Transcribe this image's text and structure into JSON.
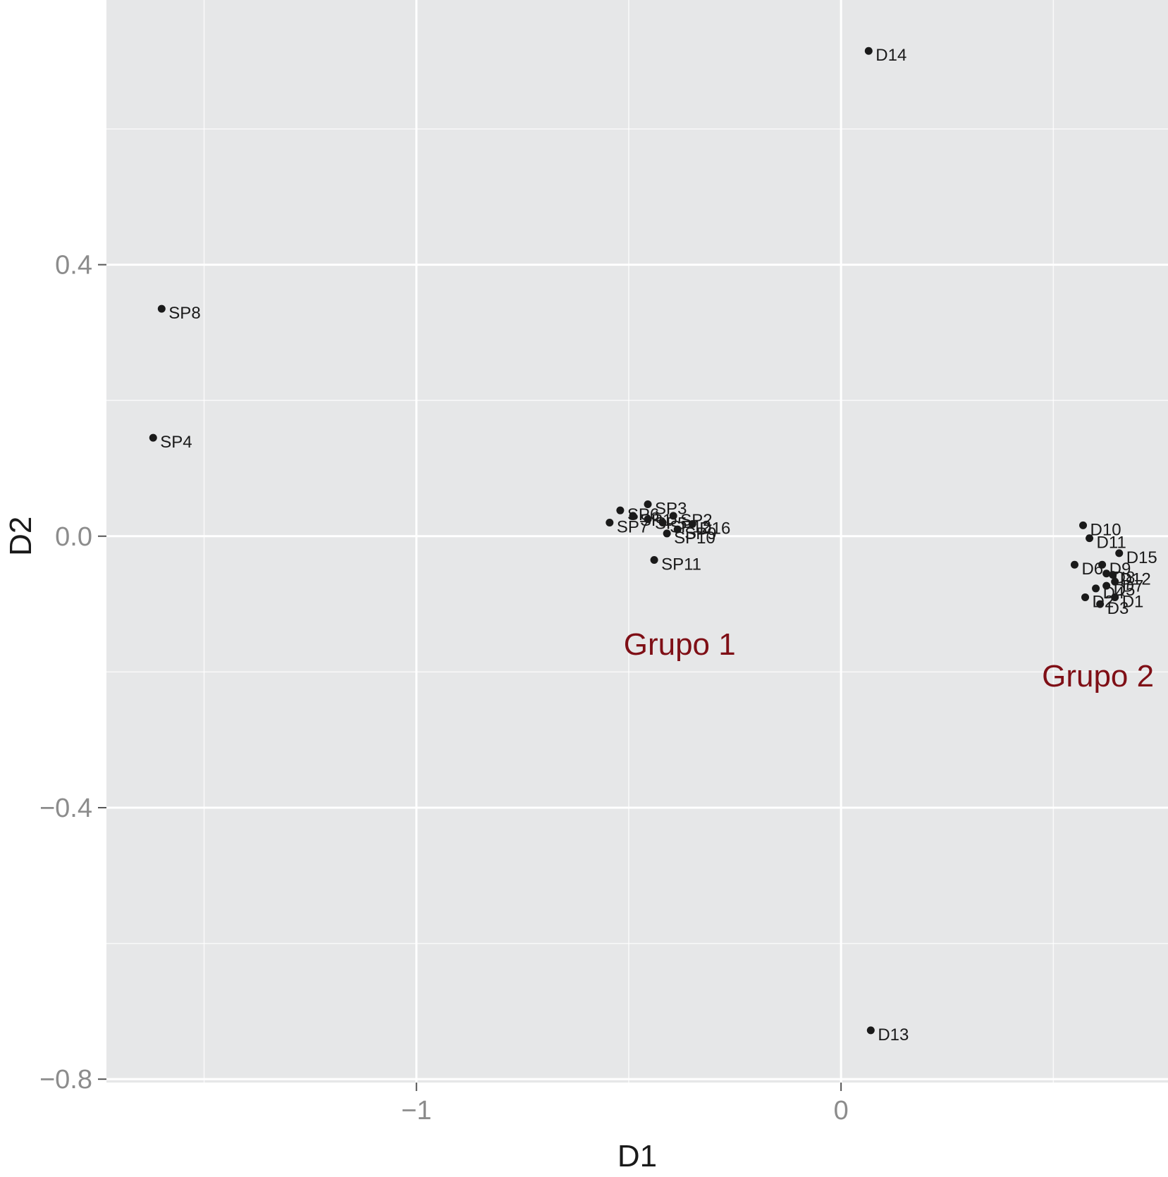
{
  "chart_data": {
    "type": "scatter",
    "title": "",
    "xlabel": "D1",
    "ylabel": "D2",
    "xlim": [
      -1.73,
      0.77
    ],
    "ylim": [
      -0.805,
      0.79
    ],
    "x_ticks": [
      {
        "value": -1,
        "label": "−1"
      },
      {
        "value": 0,
        "label": "0"
      }
    ],
    "y_ticks": [
      {
        "value": 0.4,
        "label": "0.4"
      },
      {
        "value": 0.0,
        "label": "0.0"
      },
      {
        "value": -0.4,
        "label": "−0.4"
      },
      {
        "value": -0.8,
        "label": "−0.8"
      }
    ],
    "x_minor_gridlines": [
      -1.5,
      -0.5,
      0.5
    ],
    "y_minor_gridlines": [
      0.6,
      0.2,
      -0.2,
      -0.6
    ],
    "grid": true,
    "points": [
      {
        "label": "D14",
        "x": 0.065,
        "y": 0.715
      },
      {
        "label": "SP8",
        "x": -1.6,
        "y": 0.335
      },
      {
        "label": "SP4",
        "x": -1.62,
        "y": 0.145
      },
      {
        "label": "SP3",
        "x": -0.455,
        "y": 0.047
      },
      {
        "label": "SP6",
        "x": -0.52,
        "y": 0.038
      },
      {
        "label": "SP1",
        "x": -0.49,
        "y": 0.03
      },
      {
        "label": "SP5",
        "x": -0.455,
        "y": 0.025
      },
      {
        "label": "SP2",
        "x": -0.395,
        "y": 0.03
      },
      {
        "label": "D16",
        "x": -0.35,
        "y": 0.018
      },
      {
        "label": "SP12",
        "x": -0.42,
        "y": 0.02
      },
      {
        "label": "SP9",
        "x": -0.385,
        "y": 0.01
      },
      {
        "label": "SP7",
        "x": -0.545,
        "y": 0.02
      },
      {
        "label": "SP10",
        "x": -0.41,
        "y": 0.004
      },
      {
        "label": "SP11",
        "x": -0.44,
        "y": -0.035
      },
      {
        "label": "D10",
        "x": 0.57,
        "y": 0.016
      },
      {
        "label": "D11",
        "x": 0.585,
        "y": -0.003
      },
      {
        "label": "D15",
        "x": 0.655,
        "y": -0.025
      },
      {
        "label": "D6",
        "x": 0.55,
        "y": -0.042
      },
      {
        "label": "D9",
        "x": 0.615,
        "y": -0.042
      },
      {
        "label": "D8",
        "x": 0.625,
        "y": -0.055
      },
      {
        "label": "D12",
        "x": 0.64,
        "y": -0.057
      },
      {
        "label": "D7",
        "x": 0.645,
        "y": -0.067
      },
      {
        "label": "D5",
        "x": 0.625,
        "y": -0.073
      },
      {
        "label": "D4",
        "x": 0.6,
        "y": -0.077
      },
      {
        "label": "D2",
        "x": 0.575,
        "y": -0.09
      },
      {
        "label": "D1",
        "x": 0.645,
        "y": -0.09
      },
      {
        "label": "D3",
        "x": 0.61,
        "y": -0.1
      },
      {
        "label": "D13",
        "x": 0.07,
        "y": -0.728
      }
    ],
    "annotations": [
      {
        "text": "Grupo 1",
        "x": -0.38,
        "y": -0.158,
        "color": "#7f0f16"
      },
      {
        "text": "Grupo 2",
        "x": 0.605,
        "y": -0.205,
        "color": "#7f0f16"
      }
    ],
    "colors": {
      "panel_background": "#e6e7e8",
      "gridline": "#ffffff",
      "point": "#1a1a1a",
      "tick_label": "#8c8c8c",
      "axis_title": "#1a1a1a"
    }
  }
}
